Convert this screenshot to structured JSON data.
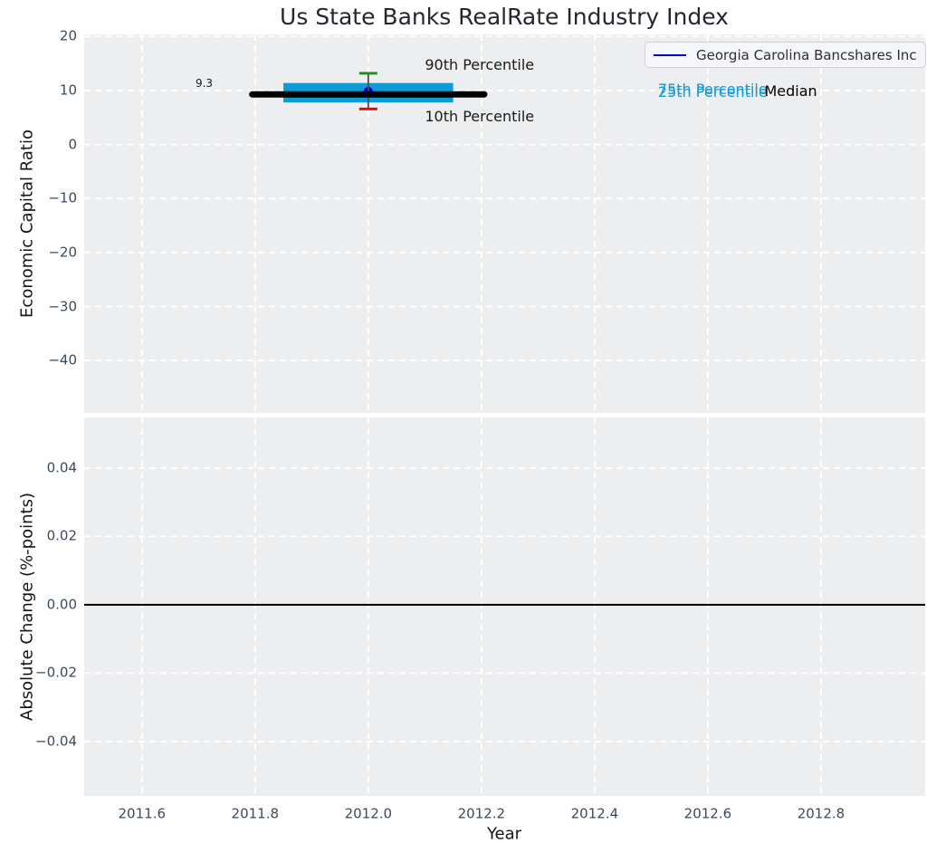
{
  "figure": {
    "title": "Us State Banks RealRate Industry Index",
    "background": "#ffffff",
    "axes_background": "#eceef0",
    "grid_color": "#ffffff",
    "tick_label_color": "#3b4a5c",
    "title_color": "#262630"
  },
  "chart_data": [
    {
      "type": "boxplot",
      "name": "economic-capital-ratio-panel",
      "ylabel": "Economic Capital Ratio",
      "xlim": [
        2011.498,
        2012.984
      ],
      "ylim": [
        -49.7,
        20.4
      ],
      "yticks": [
        20,
        10,
        0,
        -10,
        -20,
        -30,
        -40
      ],
      "ytick_labels": [
        "20",
        "10",
        "0",
        "−10",
        "−20",
        "−30",
        "−40"
      ],
      "xticks": [
        2011.6,
        2011.8,
        2012.0,
        2012.2,
        2012.4,
        2012.6,
        2012.8
      ],
      "grid": true,
      "legend": {
        "label": "Georgia Carolina Bancshares Inc",
        "line_color": "#0000cc",
        "position": "upper-right"
      },
      "industry_box": {
        "year": 2012.0,
        "median": 9.3,
        "median_label": "9.3",
        "p75": 11.4,
        "p25": 7.8,
        "p90": 13.2,
        "p10": 6.6,
        "median_line_span": [
          2011.795,
          2012.205
        ],
        "box_span": [
          2011.85,
          2012.15
        ],
        "cap_half_width": 0.016
      },
      "company_point": {
        "year": 2012.0,
        "value": 9.8
      },
      "colors": {
        "box_fill": "#0f9cd6",
        "median_line": "#000000",
        "p90_cap": "#1e8c1e",
        "p10_cap": "#f00000",
        "whisker": "#4d4d4d",
        "company_marker": "#0000cc"
      },
      "annotations": [
        {
          "text": "90th Percentile",
          "x": 2012.1,
          "y": 14.7,
          "color": "#1a1a1a",
          "align": "left",
          "size": 16
        },
        {
          "text": "10th Percentile",
          "x": 2012.1,
          "y": 5.1,
          "color": "#1a1a1a",
          "align": "left",
          "size": 16
        },
        {
          "text": "9.3",
          "x": 2011.71,
          "y": 11.3,
          "color": "#1a1a1a",
          "align": "center",
          "size": 12
        },
        {
          "text": "75th Percentile",
          "x": 2012.512,
          "y": 10.25,
          "color": "#0f9cd6",
          "align": "left",
          "size": 16
        },
        {
          "text": "25th Percentile",
          "x": 2012.512,
          "y": 9.6,
          "color": "#0f9cd6",
          "align": "left",
          "size": 16
        },
        {
          "text": "Median",
          "x": 2012.7,
          "y": 9.85,
          "color": "#000000",
          "align": "left",
          "size": 16
        }
      ]
    },
    {
      "type": "line",
      "name": "absolute-change-panel",
      "ylabel": "Absolute Change (%-points)",
      "xlabel": "Year",
      "xlim": [
        2011.498,
        2012.984
      ],
      "ylim": [
        -0.0559,
        0.0548
      ],
      "yticks": [
        0.04,
        0.02,
        0.0,
        -0.02,
        -0.04
      ],
      "ytick_labels": [
        "0.04",
        "0.02",
        "0.00",
        "−0.02",
        "−0.04"
      ],
      "xticks": [
        2011.6,
        2011.8,
        2012.0,
        2012.2,
        2012.4,
        2012.6,
        2012.8
      ],
      "xtick_labels": [
        "2011.6",
        "2011.8",
        "2012.0",
        "2012.2",
        "2012.4",
        "2012.6",
        "2012.8"
      ],
      "grid": true,
      "zero_line": {
        "y": 0.0,
        "color": "#000000"
      }
    }
  ]
}
